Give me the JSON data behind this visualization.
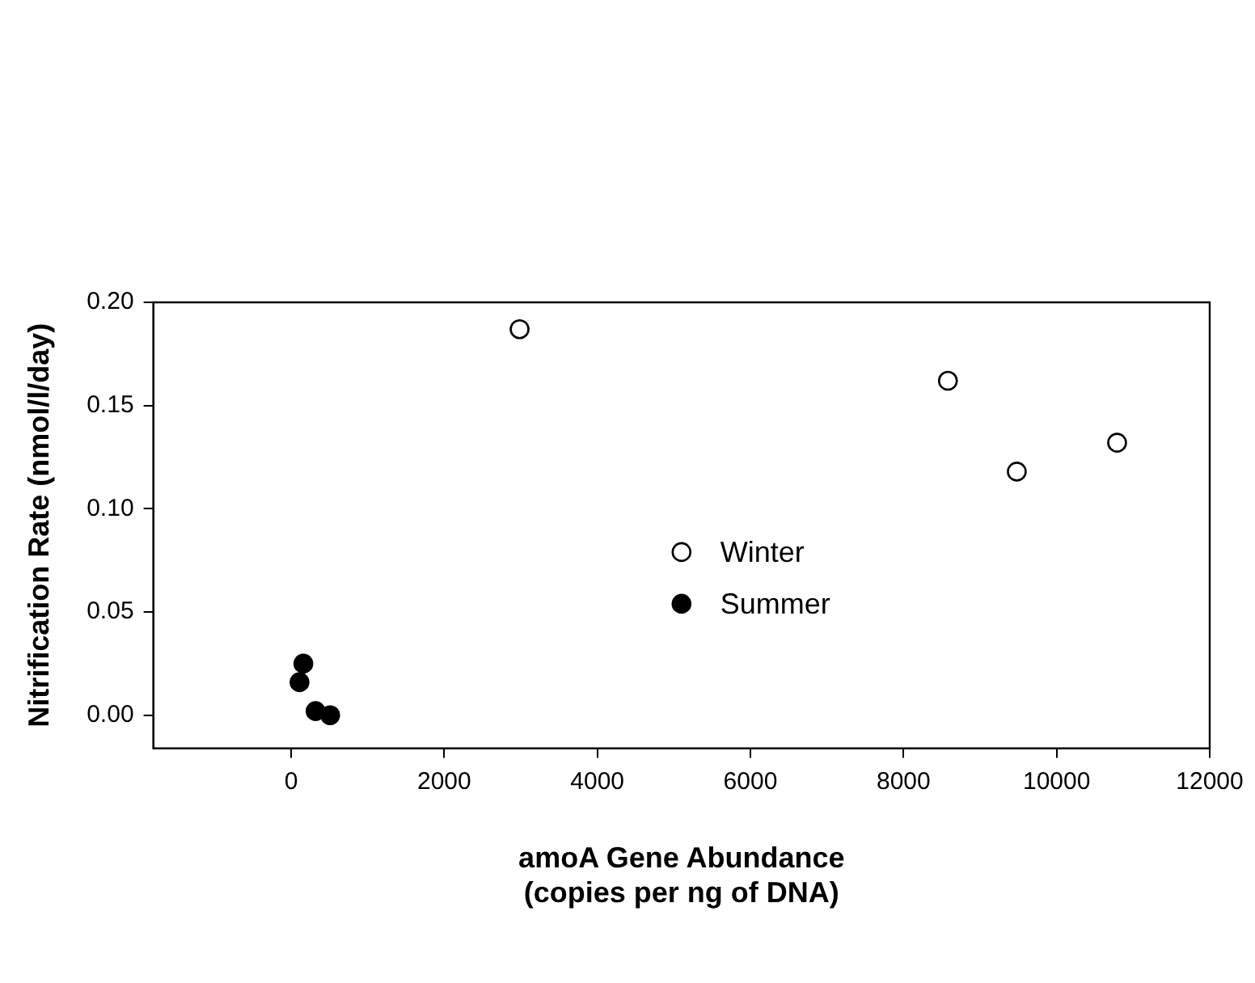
{
  "chart_data": {
    "type": "scatter",
    "xlabel": "amoA Gene Abundance\n(copies per ng of DNA)",
    "ylabel": "Nitrification Rate (nmol/l/day)",
    "xlim": [
      -1800,
      12000
    ],
    "xticks": [
      0,
      2000,
      4000,
      6000,
      8000,
      10000,
      12000
    ],
    "ylim": [
      -0.016,
      0.2
    ],
    "yticks": [
      {
        "value": 0,
        "label": "0.00"
      },
      {
        "value": 0.05,
        "label": "0.05"
      },
      {
        "value": 0.1,
        "label": "0.10"
      },
      {
        "value": 0.15,
        "label": "0.15"
      },
      {
        "value": 0.2,
        "label": "0.20"
      }
    ],
    "grid": false,
    "legend": "center",
    "marker": "circle",
    "series": [
      {
        "name": "Winter",
        "color": "#ffffff",
        "x": [
          2985,
          8580,
          9480,
          10790
        ],
        "values": [
          0.187,
          0.162,
          0.118,
          0.132
        ]
      },
      {
        "name": "Summer",
        "color": "#000000",
        "x": [
          160,
          110,
          320,
          510
        ],
        "values": [
          0.025,
          0.016,
          0.002,
          0
        ]
      }
    ]
  }
}
